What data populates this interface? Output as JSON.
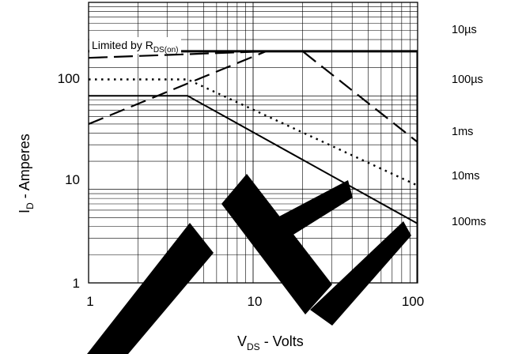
{
  "chart_data": {
    "type": "line",
    "title": "",
    "xscale": "log",
    "yscale": "log",
    "xlim": [
      1,
      100
    ],
    "ylim": [
      1,
      1000
    ],
    "grid": true,
    "x_ticks": [
      "1",
      "10",
      "100"
    ],
    "y_ticks": [
      "1",
      "10",
      "100"
    ],
    "xlabel": {
      "main": "V",
      "sub": "DS",
      "rest": " - Volts"
    },
    "ylabel": {
      "main": "I",
      "sub": "D",
      "rest": " - Amperes"
    },
    "annotation": {
      "prefix": "Limited by R",
      "sub": "DS(on)"
    },
    "series": [
      {
        "name": "10µs",
        "style": "longdash",
        "points": [
          [
            1,
            255
          ],
          [
            12,
            300
          ],
          [
            100,
            300
          ]
        ]
      },
      {
        "name": "100µs",
        "style": "dash",
        "points": [
          [
            1,
            50
          ],
          [
            12,
            300
          ],
          [
            20,
            300
          ],
          [
            100,
            32
          ]
        ]
      },
      {
        "name": "1ms",
        "style": "dot",
        "points": [
          [
            1,
            150
          ],
          [
            4,
            150
          ],
          [
            100,
            11
          ]
        ]
      },
      {
        "name": "10ms",
        "style": "solid",
        "points": [
          [
            1,
            100
          ],
          [
            4,
            100
          ],
          [
            100,
            4.3
          ]
        ]
      },
      {
        "name": "100ms",
        "style": "solid-thick",
        "points": [
          [
            1,
            300
          ],
          [
            100,
            300
          ],
          [
            100,
            1
          ]
        ]
      }
    ]
  }
}
